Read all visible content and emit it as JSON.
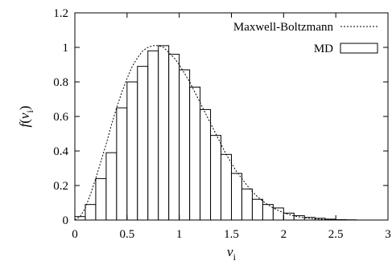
{
  "chart_data": {
    "type": "bar",
    "xlim": [
      0,
      3
    ],
    "ylim": [
      0,
      1.2
    ],
    "xticks": [
      "0",
      "0.5",
      "1",
      "1.5",
      "2",
      "2.5",
      "3"
    ],
    "yticks": [
      "0",
      "0.2",
      "0.4",
      "0.6",
      "0.8",
      "1",
      "1.2"
    ],
    "xlabel": {
      "main": "v",
      "subscript": "i"
    },
    "ylabel": {
      "prefix": "f(",
      "variable": "v",
      "subscript": "i",
      "suffix": ")"
    },
    "grid": false,
    "legend_position": "top-right",
    "series": [
      {
        "name": "Maxwell-Boltzmann",
        "style": "dotted-line",
        "color": "#000000",
        "x": [
          0.0,
          0.05,
          0.1,
          0.15,
          0.2,
          0.25,
          0.3,
          0.35,
          0.4,
          0.45,
          0.5,
          0.55,
          0.6,
          0.65,
          0.7,
          0.75,
          0.8,
          0.85,
          0.9,
          0.95,
          1.0,
          1.05,
          1.1,
          1.15,
          1.2,
          1.25,
          1.3,
          1.35,
          1.4,
          1.45,
          1.5,
          1.55,
          1.6,
          1.65,
          1.7,
          1.75,
          1.8,
          1.85,
          1.9,
          1.95,
          2.0,
          2.05,
          2.1,
          2.15,
          2.2,
          2.25,
          2.3,
          2.35,
          2.4,
          2.45,
          2.5,
          2.55,
          2.6,
          2.65,
          2.7,
          2.75,
          2.8,
          2.85,
          2.9,
          2.95,
          3.0
        ],
        "y": [
          0.0,
          0.02,
          0.07,
          0.15,
          0.24,
          0.34,
          0.44,
          0.55,
          0.65,
          0.74,
          0.82,
          0.89,
          0.94,
          0.98,
          1.0,
          1.01,
          1.01,
          1.0,
          0.97,
          0.94,
          0.9,
          0.85,
          0.8,
          0.74,
          0.68,
          0.62,
          0.56,
          0.5,
          0.44,
          0.38,
          0.33,
          0.28,
          0.24,
          0.2,
          0.165,
          0.135,
          0.11,
          0.088,
          0.07,
          0.055,
          0.042,
          0.032,
          0.024,
          0.018,
          0.013,
          0.01,
          0.007,
          0.005,
          0.0035,
          0.0025,
          0.0017,
          0.0011,
          0.0007,
          0.0005,
          0.0003,
          0.0002,
          0.0001,
          0.0001,
          0.0,
          0.0,
          0.0
        ]
      },
      {
        "name": "MD",
        "style": "histogram",
        "color": "#000000",
        "bin_width": 0.1,
        "bin_starts": [
          0.0,
          0.1,
          0.2,
          0.3,
          0.4,
          0.5,
          0.6,
          0.7,
          0.8,
          0.9,
          1.0,
          1.1,
          1.2,
          1.3,
          1.4,
          1.5,
          1.6,
          1.7,
          1.8,
          1.9,
          2.0,
          2.1,
          2.2,
          2.3,
          2.4,
          2.5,
          2.6,
          2.7,
          2.8,
          2.9
        ],
        "values": [
          0.02,
          0.09,
          0.24,
          0.39,
          0.65,
          0.8,
          0.89,
          0.98,
          1.01,
          0.96,
          0.87,
          0.77,
          0.64,
          0.49,
          0.38,
          0.27,
          0.18,
          0.12,
          0.09,
          0.07,
          0.04,
          0.025,
          0.015,
          0.01,
          0.005,
          0.002,
          0.001,
          0.0,
          0.0,
          0.0
        ]
      }
    ]
  }
}
